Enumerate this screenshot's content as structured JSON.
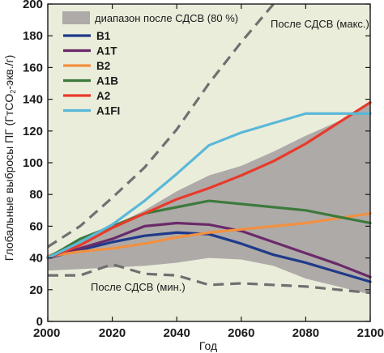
{
  "chart_data": {
    "type": "line",
    "xlabel": "Год",
    "ylabel": "Глобальные выбросы ПГ (ГтCO₂-экв./г)",
    "ylabel_parts": [
      "Глобальные выбросы ПГ (ГтCO",
      "2",
      "-экв./г)"
    ],
    "xlim": [
      2000,
      2100
    ],
    "ylim": [
      0,
      200
    ],
    "xticks": [
      "2000",
      "2020",
      "2040",
      "2060",
      "2080",
      "2100"
    ],
    "yticks": [
      "0",
      "20",
      "40",
      "60",
      "80",
      "100",
      "120",
      "140",
      "160",
      "180",
      "200"
    ],
    "plot_background": "#ebeddb",
    "band": {
      "name": "диапазон после СДСВ (80 %)",
      "color": "#aeaaa8",
      "x": [
        2000,
        2010,
        2020,
        2030,
        2040,
        2050,
        2060,
        2070,
        2080,
        2090,
        2100
      ],
      "upper": [
        42,
        50,
        60,
        70,
        82,
        92,
        98,
        107,
        117,
        126,
        137
      ],
      "lower": [
        32,
        33,
        34,
        35,
        37,
        40,
        39,
        35,
        27,
        22,
        17
      ]
    },
    "envelopes": [
      {
        "name": "После СДСВ (макс.)",
        "color": "#707070",
        "dash": true,
        "x": [
          2000,
          2010,
          2020,
          2030,
          2040,
          2050,
          2060,
          2070
        ],
        "values": [
          47,
          60,
          78,
          97,
          121,
          150,
          176,
          200
        ]
      },
      {
        "name": "После СДСВ (мин.)",
        "color": "#707070",
        "dash": true,
        "x": [
          2000,
          2010,
          2020,
          2030,
          2040,
          2050,
          2060,
          2070,
          2080,
          2090,
          2100
        ],
        "values": [
          29,
          29,
          36,
          30,
          29,
          23,
          24,
          23,
          22,
          20,
          18
        ]
      }
    ],
    "series": [
      {
        "name": "B1",
        "color": "#1f3a8a",
        "x": [
          2000,
          2010,
          2020,
          2030,
          2040,
          2050,
          2060,
          2070,
          2080,
          2090,
          2100
        ],
        "values": [
          40,
          45,
          50,
          54,
          56,
          55,
          49,
          42,
          37,
          31,
          25
        ]
      },
      {
        "name": "A1T",
        "color": "#6a2a6a",
        "x": [
          2000,
          2010,
          2020,
          2030,
          2040,
          2050,
          2060,
          2070,
          2080,
          2090,
          2100
        ],
        "values": [
          40,
          46,
          52,
          60,
          62,
          61,
          57,
          50,
          43,
          36,
          28
        ]
      },
      {
        "name": "B2",
        "color": "#f29040",
        "x": [
          2000,
          2010,
          2020,
          2030,
          2040,
          2050,
          2060,
          2070,
          2080,
          2090,
          2100
        ],
        "values": [
          41,
          44,
          46,
          49,
          53,
          56,
          58,
          60,
          62,
          65,
          68
        ]
      },
      {
        "name": "A1B",
        "color": "#3c7a3c",
        "x": [
          2000,
          2010,
          2020,
          2030,
          2040,
          2050,
          2060,
          2070,
          2080,
          2090,
          2100
        ],
        "values": [
          40,
          52,
          60,
          68,
          72,
          76,
          74,
          72,
          70,
          66,
          62
        ]
      },
      {
        "name": "A2",
        "color": "#e83a2a",
        "x": [
          2000,
          2010,
          2020,
          2030,
          2040,
          2050,
          2060,
          2070,
          2080,
          2090,
          2100
        ],
        "values": [
          40,
          48,
          59,
          68,
          77,
          84,
          92,
          101,
          112,
          125,
          138
        ]
      },
      {
        "name": "A1FI",
        "color": "#5ab8d8",
        "x": [
          2000,
          2010,
          2020,
          2030,
          2040,
          2050,
          2060,
          2070,
          2080,
          2090,
          2100
        ],
        "values": [
          40,
          50,
          61,
          76,
          93,
          111,
          119,
          125,
          131,
          131,
          131
        ]
      }
    ],
    "grid": false,
    "legend_position": "top-left"
  }
}
